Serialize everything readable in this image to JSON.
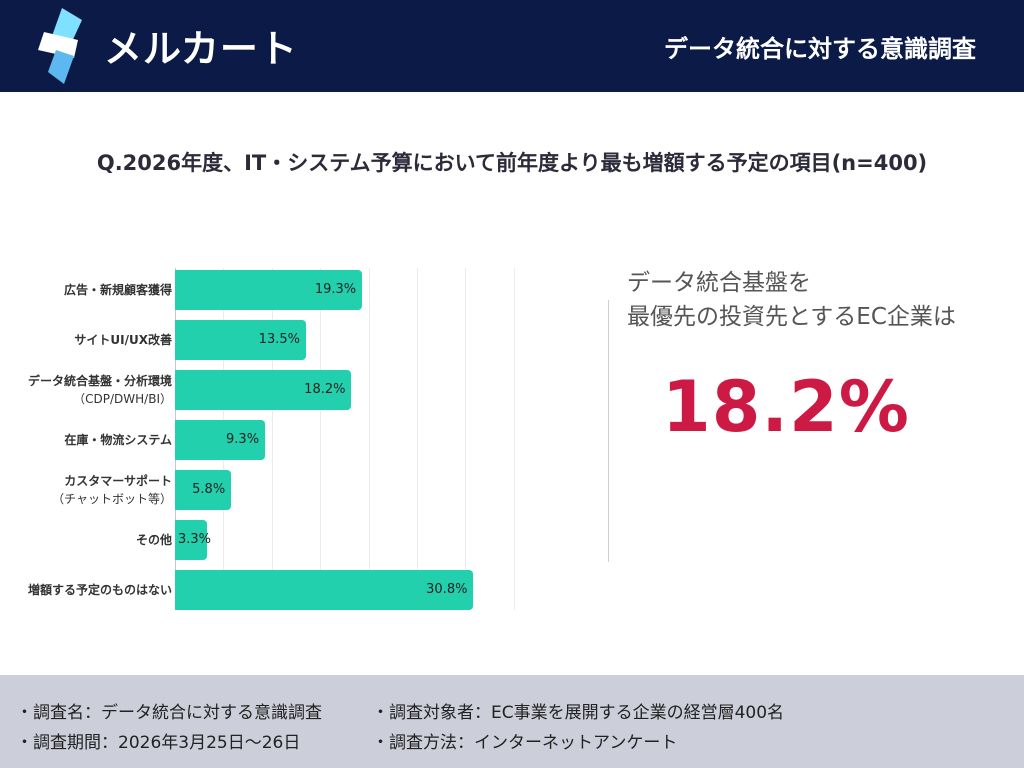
{
  "header": {
    "brand": "メルカート",
    "title": "データ統合に対する意識調査",
    "colors": {
      "bg": "#0b1a46",
      "text": "#ffffff"
    }
  },
  "question": "Q.2026年度、IT・システム予算において前年度より最も増額する予定の項目(n=400)",
  "chart_data": {
    "type": "bar",
    "orientation": "horizontal",
    "categories": [
      {
        "label": "広告・新規顧客獲得",
        "sub": ""
      },
      {
        "label": "サイトUI/UX改善",
        "sub": ""
      },
      {
        "label": "データ統合基盤・分析環境",
        "sub": "（CDP/DWH/BI）"
      },
      {
        "label": "在庫・物流システム",
        "sub": ""
      },
      {
        "label": "カスタマーサポート",
        "sub": "（チャットボット等）"
      },
      {
        "label": "その他",
        "sub": ""
      },
      {
        "label": "増額する予定のものはない",
        "sub": ""
      }
    ],
    "values": [
      19.3,
      13.5,
      18.2,
      9.3,
      5.8,
      3.3,
      30.8
    ],
    "value_labels": [
      "19.3%",
      "13.5%",
      "18.2%",
      "9.3%",
      "5.8%",
      "3.3%",
      "30.8%"
    ],
    "unit": "%",
    "xlim": [
      0,
      35
    ],
    "grid": true,
    "bar_color": "#22d0ae"
  },
  "highlight": {
    "line1": "データ統合基盤を",
    "line2": "最優先の投資先とするEC企業は",
    "value": "18.2%",
    "value_color": "#cc1a45"
  },
  "footer": {
    "items": [
      "・調査名：データ統合に対する意識調査",
      "・調査対象者：EC事業を展開する企業の経営層400名",
      "・調査期間：2026年3月25日〜26日",
      "・調査方法：インターネットアンケート"
    ]
  }
}
